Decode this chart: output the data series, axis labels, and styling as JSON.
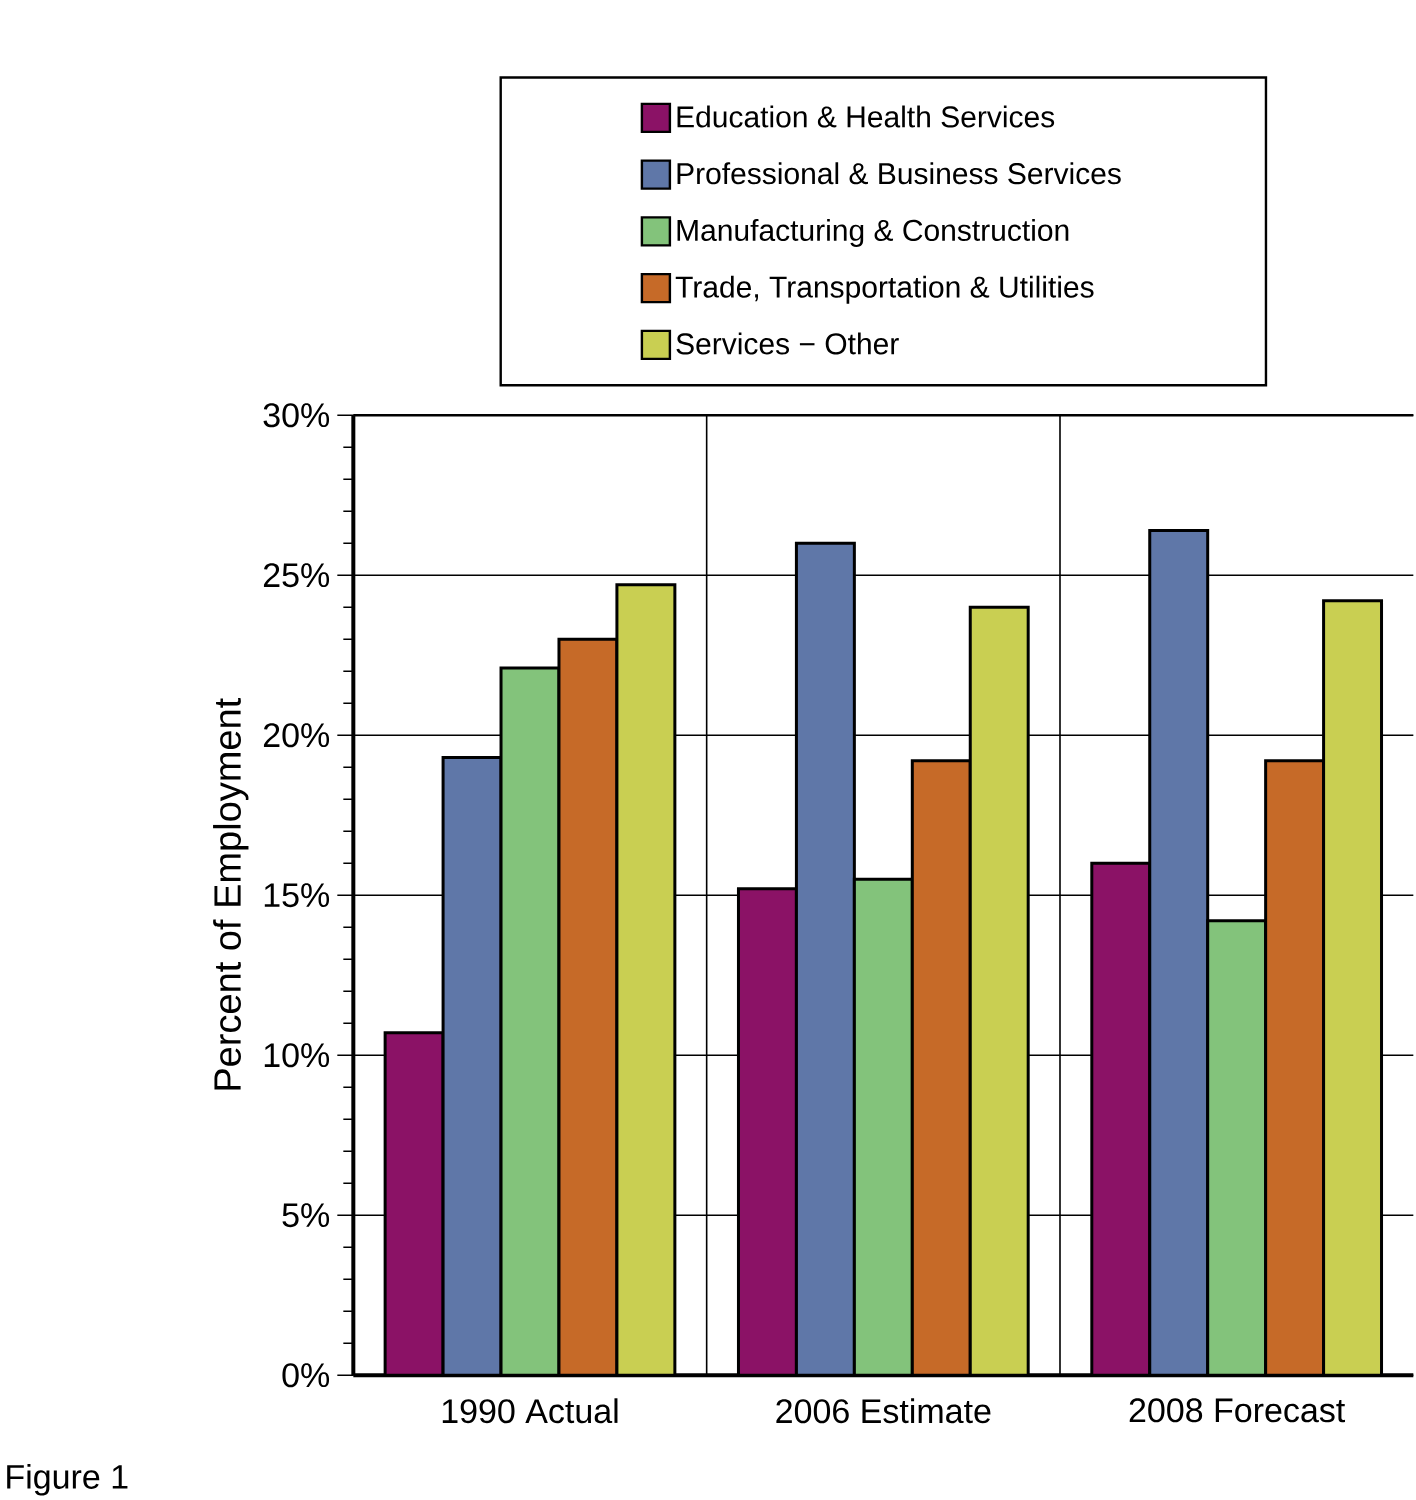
{
  "chart_data": {
    "type": "bar",
    "ylabel": "Percent of Employment",
    "categories": [
      "1990 Actual",
      "2006 Estimate",
      "2008 Forecast"
    ],
    "series": [
      {
        "name": "Education & Health Services",
        "color": "#8b1266",
        "values": [
          10.7,
          15.2,
          16.0
        ]
      },
      {
        "name": "Professional & Business Services",
        "color": "#5f77a8",
        "values": [
          19.3,
          26.0,
          26.4
        ]
      },
      {
        "name": "Manufacturing & Construction",
        "color": "#83c37b",
        "values": [
          22.1,
          15.5,
          14.2
        ]
      },
      {
        "name": "Trade, Transportation & Utilities",
        "color": "#c66a28",
        "values": [
          23.0,
          19.2,
          19.2
        ]
      },
      {
        "name": "Services − Other",
        "color": "#c9cf52",
        "values": [
          24.7,
          24.0,
          24.2
        ]
      }
    ],
    "ylim": [
      0,
      30
    ],
    "yticks": [
      {
        "value": 0,
        "label": "0%"
      },
      {
        "value": 5,
        "label": "5%"
      },
      {
        "value": 10,
        "label": "10%"
      },
      {
        "value": 15,
        "label": "15%"
      },
      {
        "value": 20,
        "label": "20%"
      },
      {
        "value": 25,
        "label": "25%"
      },
      {
        "value": 30,
        "label": "30%"
      }
    ],
    "grid": true,
    "legend": "top",
    "annotations": [
      "Figure 1"
    ]
  }
}
